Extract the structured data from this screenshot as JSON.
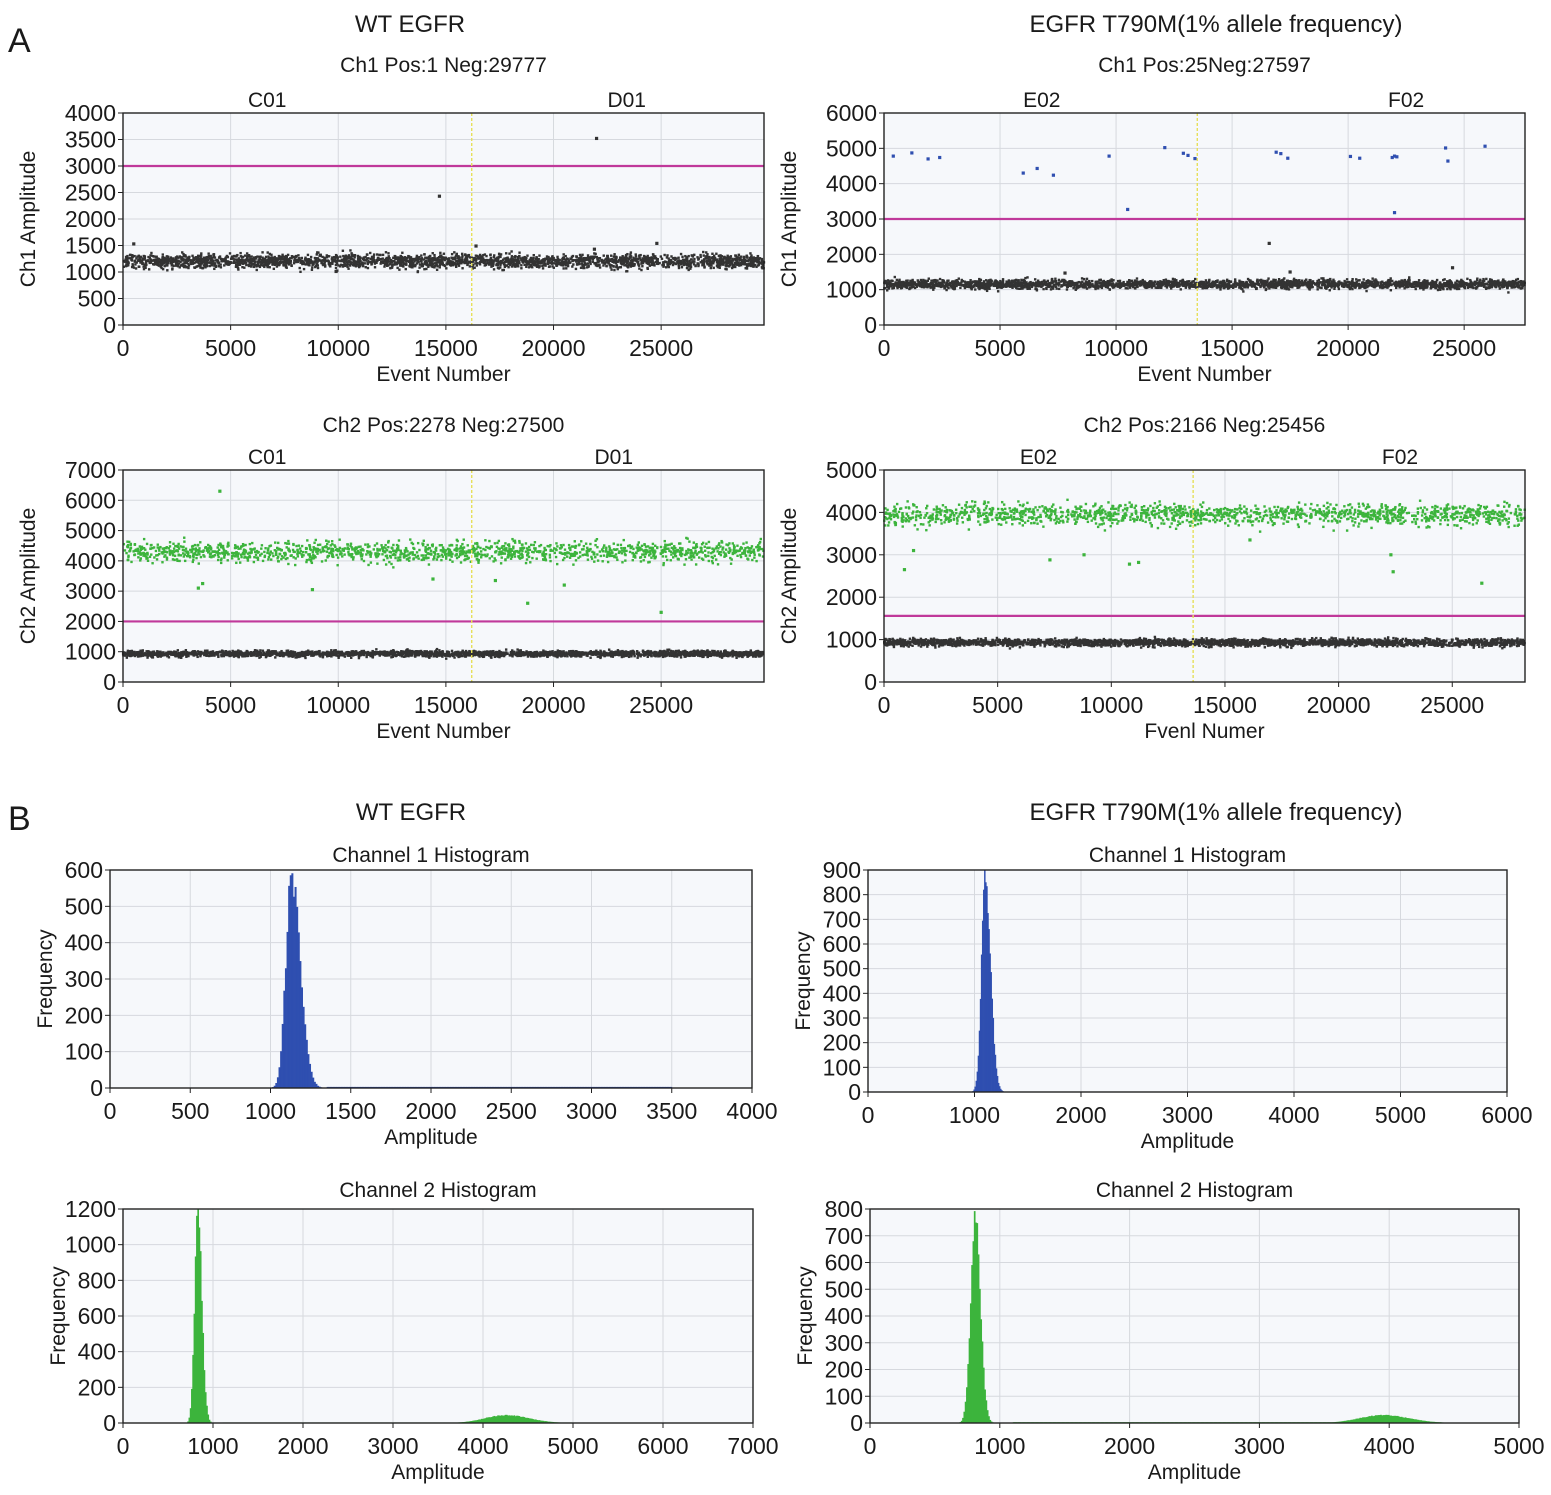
{
  "panels": [
    {
      "letter": "A",
      "titles": [
        "WT EGFR",
        "EGFR T790M(1% allele frequency)"
      ]
    },
    {
      "letter": "B",
      "titles": [
        "WT EGFR",
        "EGFR T790M(1% allele frequency)"
      ]
    }
  ],
  "colors": {
    "ch1_pos": "#2f4fb0",
    "ch2_pos": "#3cb43c",
    "negative": "#333333",
    "threshold": "#c0399a",
    "divider": "#e6e05a",
    "plot_bg": "#f6f8fb",
    "grid": "#d6d9de"
  },
  "chart_data": [
    {
      "type": "scatter",
      "title": "Ch1 Pos:1 Neg:29777",
      "xlabel": "Event Number",
      "ylabel": "Ch1 Amplitude",
      "xlim": [
        0,
        29778
      ],
      "ylim": [
        0,
        4000
      ],
      "xticks": [
        0,
        5000,
        10000,
        15000,
        20000,
        25000
      ],
      "yticks": [
        0,
        500,
        1000,
        1500,
        2000,
        2500,
        3000,
        3500,
        4000
      ],
      "wells": [
        {
          "name": "C01",
          "x": 6700
        },
        {
          "name": "D01",
          "x": 23400
        }
      ],
      "well_divider": 16200,
      "threshold": 3000,
      "negative_band": {
        "mean": 1200,
        "spread": 90
      },
      "series": [
        {
          "name": "",
          "color": "#333333",
          "points": [
            [
              14700,
              2430
            ],
            [
              9900,
              1010
            ],
            [
              500,
              1530
            ],
            [
              24800,
              1540
            ],
            [
              16400,
              1490
            ],
            [
              21900,
              1430
            ]
          ]
        },
        {
          "name": "",
          "color": "#333333",
          "points": [
            [
              22000,
              3520
            ]
          ]
        }
      ]
    },
    {
      "type": "scatter",
      "title": "Ch1 Pos:25Neg:27597",
      "xlabel": "Event Number",
      "ylabel": "Ch1 Amplitude",
      "xlim": [
        0,
        27622
      ],
      "ylim": [
        0,
        6000
      ],
      "xticks": [
        0,
        5000,
        10000,
        15000,
        20000,
        25000
      ],
      "yticks": [
        0,
        1000,
        2000,
        3000,
        4000,
        5000,
        6000
      ],
      "wells": [
        {
          "name": "E02",
          "x": 6800
        },
        {
          "name": "F02",
          "x": 22500
        }
      ],
      "well_divider": 13500,
      "threshold": 3000,
      "negative_band": {
        "mean": 1150,
        "spread": 90
      },
      "series": [
        {
          "name": "",
          "color": "#2f4fb0",
          "points": [
            [
              400,
              4780
            ],
            [
              1200,
              4870
            ],
            [
              1900,
              4700
            ],
            [
              2400,
              4740
            ],
            [
              6000,
              4300
            ],
            [
              6600,
              4430
            ],
            [
              7300,
              4240
            ],
            [
              9700,
              4780
            ],
            [
              10500,
              3270
            ],
            [
              12100,
              5020
            ],
            [
              12900,
              4860
            ],
            [
              13100,
              4800
            ],
            [
              13400,
              4710
            ],
            [
              16900,
              4890
            ],
            [
              17100,
              4850
            ],
            [
              17400,
              4720
            ],
            [
              20100,
              4770
            ],
            [
              20500,
              4720
            ],
            [
              21900,
              4740
            ],
            [
              22000,
              4780
            ],
            [
              22100,
              4760
            ],
            [
              22000,
              3180
            ],
            [
              24200,
              5010
            ],
            [
              24300,
              4640
            ],
            [
              25900,
              5060
            ]
          ]
        },
        {
          "name": "",
          "color": "#333333",
          "points": [
            [
              16600,
              2310
            ],
            [
              24500,
              1620
            ],
            [
              17500,
              1500
            ],
            [
              7800,
              1470
            ]
          ]
        }
      ]
    },
    {
      "type": "scatter",
      "title": "Ch2 Pos:2278 Neg:27500",
      "xlabel": "Event Number",
      "ylabel": "Ch2 Amplitude",
      "xlim": [
        0,
        29778
      ],
      "ylim": [
        0,
        7000
      ],
      "xticks": [
        0,
        5000,
        10000,
        15000,
        20000,
        25000
      ],
      "yticks": [
        0,
        1000,
        2000,
        3000,
        4000,
        5000,
        6000,
        7000
      ],
      "wells": [
        {
          "name": "C01",
          "x": 6700
        },
        {
          "name": "D01",
          "x": 22800
        }
      ],
      "well_divider": 16200,
      "threshold": 2000,
      "negative_band": {
        "mean": 930,
        "spread": 70
      },
      "positive_band": {
        "mean": 4300,
        "spread": 230
      },
      "series": [
        {
          "name": "",
          "color": "#3cb43c",
          "points": [
            [
              4500,
              6300
            ],
            [
              3500,
              3100
            ],
            [
              3700,
              3250
            ],
            [
              8800,
              3050
            ],
            [
              18800,
              2600
            ],
            [
              25000,
              2300
            ],
            [
              17300,
              3350
            ],
            [
              20500,
              3200
            ],
            [
              14400,
              3400
            ]
          ]
        }
      ]
    },
    {
      "type": "scatter",
      "title": "Ch2 Pos:2166 Neg:25456",
      "xlabel": "Fvenl Numer",
      "ylabel": "Ch2 Amplitude",
      "xlim": [
        0,
        28200
      ],
      "ylim": [
        0,
        5000
      ],
      "xticks": [
        0,
        5000,
        10000,
        15000,
        20000,
        25000
      ],
      "yticks": [
        0,
        1000,
        2000,
        3000,
        4000,
        5000
      ],
      "wells": [
        {
          "name": "E02",
          "x": 6800
        },
        {
          "name": "F02",
          "x": 22700
        }
      ],
      "well_divider": 13600,
      "threshold": 1560,
      "negative_band": {
        "mean": 930,
        "spread": 60
      },
      "positive_band": {
        "mean": 3950,
        "spread": 180
      },
      "series": [
        {
          "name": "",
          "color": "#3cb43c",
          "points": [
            [
              900,
              2650
            ],
            [
              1300,
              3100
            ],
            [
              7300,
              2880
            ],
            [
              8800,
              3000
            ],
            [
              10800,
              2780
            ],
            [
              11200,
              2820
            ],
            [
              22300,
              3000
            ],
            [
              22400,
              2600
            ],
            [
              26300,
              2330
            ],
            [
              16100,
              3350
            ]
          ]
        }
      ]
    },
    {
      "type": "bar",
      "title": "Channel 1 Histogram",
      "xlabel": "Amplitude",
      "ylabel": "Frequency",
      "xlim": [
        0,
        4000
      ],
      "ylim": [
        0,
        600
      ],
      "xticks": [
        0,
        500,
        1000,
        1500,
        2000,
        2500,
        3000,
        3500,
        4000
      ],
      "yticks": [
        0,
        100,
        200,
        300,
        400,
        500,
        600
      ],
      "bin_width": 10,
      "color": "#2f4fb0",
      "peaks": [
        {
          "center": 1130,
          "height": 590,
          "sigma_left": 35,
          "sigma_right": 55
        }
      ],
      "baseline": {
        "from": 1350,
        "to": 3500,
        "value": 3
      }
    },
    {
      "type": "bar",
      "title": "Channel 1 Histogram",
      "xlabel": "Amplitude",
      "ylabel": "Frequency",
      "xlim": [
        0,
        6000
      ],
      "ylim": [
        0,
        900
      ],
      "xticks": [
        0,
        1000,
        2000,
        3000,
        4000,
        5000,
        6000
      ],
      "yticks": [
        0,
        100,
        200,
        300,
        400,
        500,
        600,
        700,
        800,
        900
      ],
      "bin_width": 10,
      "color": "#2f4fb0",
      "peaks": [
        {
          "center": 1100,
          "height": 890,
          "sigma_left": 35,
          "sigma_right": 50
        }
      ],
      "baseline": {
        "from": 1300,
        "to": 5000,
        "value": 2
      }
    },
    {
      "type": "bar",
      "title": "Channel 2 Histogram",
      "xlabel": "Amplitude",
      "ylabel": "Frequency",
      "xlim": [
        0,
        7000
      ],
      "ylim": [
        0,
        1200
      ],
      "xticks": [
        0,
        1000,
        2000,
        3000,
        4000,
        5000,
        6000,
        7000
      ],
      "yticks": [
        0,
        200,
        400,
        600,
        800,
        1000,
        1200
      ],
      "bin_width": 14,
      "color": "#3cb43c",
      "peaks": [
        {
          "center": 830,
          "height": 1200,
          "sigma_left": 35,
          "sigma_right": 45
        },
        {
          "center": 4250,
          "height": 45,
          "sigma_left": 230,
          "sigma_right": 260
        }
      ],
      "baseline": {
        "from": 1100,
        "to": 5000,
        "value": 3
      }
    },
    {
      "type": "bar",
      "title": "Channel 2 Histogram",
      "xlabel": "Amplitude",
      "ylabel": "Frequency",
      "xlim": [
        0,
        5000
      ],
      "ylim": [
        0,
        800
      ],
      "xticks": [
        0,
        1000,
        2000,
        3000,
        4000,
        5000
      ],
      "yticks": [
        0,
        100,
        200,
        300,
        400,
        500,
        600,
        700,
        800
      ],
      "bin_width": 10,
      "color": "#3cb43c",
      "peaks": [
        {
          "center": 810,
          "height": 780,
          "sigma_left": 35,
          "sigma_right": 40
        },
        {
          "center": 3950,
          "height": 30,
          "sigma_left": 180,
          "sigma_right": 200
        }
      ],
      "baseline": {
        "from": 1100,
        "to": 4400,
        "value": 3
      }
    }
  ]
}
